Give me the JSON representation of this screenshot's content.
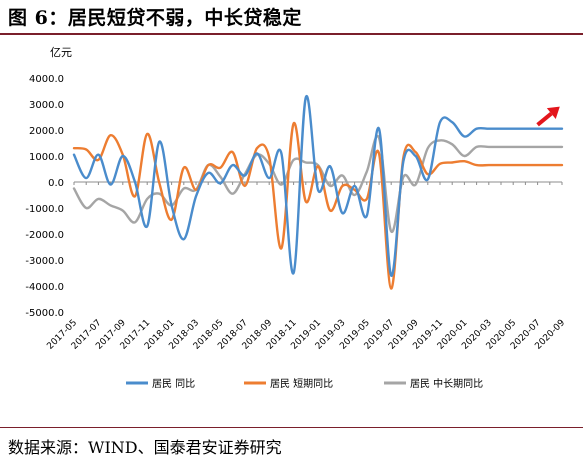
{
  "header": {
    "title": "图 6：居民短贷不弱，中长贷稳定"
  },
  "footer": {
    "source": "数据来源：WIND、国泰君安证券研究"
  },
  "chart_data": {
    "type": "line",
    "unit_label": "亿元",
    "ylim": [
      -5000,
      4000
    ],
    "yticks": [
      4000,
      3000,
      2000,
      1000,
      0,
      -1000,
      -2000,
      -3000,
      -4000,
      -5000
    ],
    "ytick_labels": [
      "4000.0",
      "3000.0",
      "2000.0",
      "1000.0",
      "0.0",
      "-1000.0",
      "-2000.0",
      "-3000.0",
      "-4000.0",
      "-5000.0"
    ],
    "x": [
      "2017-05",
      "2017-06",
      "2017-07",
      "2017-08",
      "2017-09",
      "2017-10",
      "2017-11",
      "2017-12",
      "2018-01",
      "2018-02",
      "2018-03",
      "2018-04",
      "2018-05",
      "2018-06",
      "2018-07",
      "2018-08",
      "2018-09",
      "2018-10",
      "2018-11",
      "2018-12",
      "2019-01",
      "2019-02",
      "2019-03",
      "2019-04",
      "2019-05",
      "2019-06",
      "2019-07",
      "2019-08",
      "2019-09",
      "2019-10",
      "2019-11",
      "2019-12",
      "2020-01",
      "2020-02",
      "2020-03",
      "2020-04",
      "2020-05",
      "2020-06",
      "2020-07",
      "2020-08",
      "2020-09"
    ],
    "xtick_labels": [
      "2017-05",
      "2017-07",
      "2017-09",
      "2017-11",
      "2018-01",
      "2018-03",
      "2018-05",
      "2018-07",
      "2018-09",
      "2018-11",
      "2019-01",
      "2019-03",
      "2019-05",
      "2019-07",
      "2019-09",
      "2019-11",
      "2020-01",
      "2020-03",
      "2020-05",
      "2020-07",
      "2020-09"
    ],
    "grid": false,
    "legend_position": "bottom",
    "arrow_annotation": {
      "from_x": "2020-07",
      "from_y": 2200,
      "to_x": "2020-08",
      "to_y": 2900,
      "color": "#e3161c"
    },
    "series": [
      {
        "name": "居民  同比",
        "color": "#4a8ccc",
        "values": [
          1050,
          150,
          1050,
          -100,
          1000,
          0,
          -1700,
          1550,
          -900,
          -2200,
          -550,
          350,
          -50,
          650,
          250,
          1100,
          150,
          1100,
          -3500,
          3250,
          -300,
          600,
          -1200,
          -150,
          -1300,
          2050,
          -3600,
          800,
          1000,
          100,
          2300,
          2300,
          1750,
          2050,
          2050,
          2050,
          2050,
          2050,
          2050,
          2050,
          2050
        ]
      },
      {
        "name": "居民  短期同比",
        "color": "#ed7d31",
        "values": [
          1300,
          1250,
          850,
          1800,
          1050,
          -550,
          1850,
          -50,
          -1450,
          550,
          -300,
          650,
          550,
          1150,
          -150,
          1300,
          950,
          -2550,
          2250,
          -750,
          600,
          -1100,
          -150,
          -300,
          -650,
          1100,
          -4100,
          950,
          1150,
          300,
          700,
          750,
          800,
          650,
          650,
          650,
          650,
          650,
          650,
          650,
          650
        ]
      },
      {
        "name": "居民  中长期同比",
        "color": "#a5a5a5",
        "values": [
          -250,
          -1000,
          -650,
          -900,
          -1100,
          -1550,
          -650,
          -450,
          -900,
          -250,
          -300,
          650,
          200,
          -450,
          300,
          1050,
          700,
          -100,
          850,
          750,
          650,
          -150,
          250,
          -500,
          400,
          1700,
          -1900,
          200,
          -100,
          1300,
          1600,
          1450,
          1000,
          1350,
          1350,
          1350,
          1350,
          1350,
          1350,
          1350,
          1350
        ]
      }
    ]
  }
}
